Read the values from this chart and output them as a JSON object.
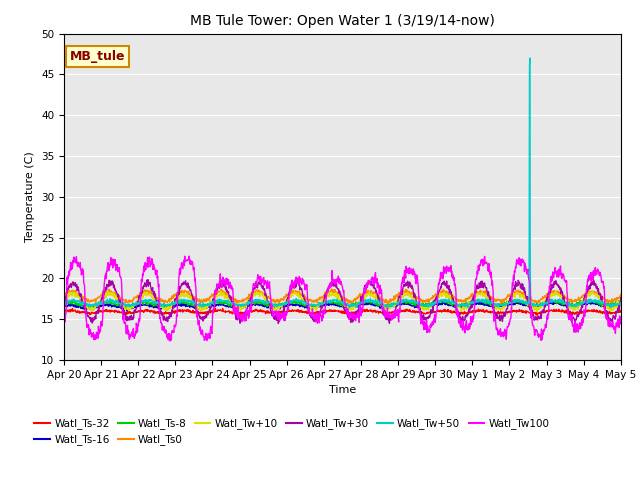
{
  "title": "MB Tule Tower: Open Water 1 (3/19/14-now)",
  "xlabel": "Time",
  "ylabel": "Temperature (C)",
  "ylim": [
    10,
    50
  ],
  "yticks": [
    10,
    15,
    20,
    25,
    30,
    35,
    40,
    45,
    50
  ],
  "bg_color": "#e8e8e8",
  "legend_box_label": "MB_tule",
  "legend_box_facecolor": "#ffffcc",
  "legend_box_edgecolor": "#cc8800",
  "legend_box_textcolor": "#880000",
  "series": [
    {
      "label": "Watl_Ts-32",
      "color": "#ff0000"
    },
    {
      "label": "Watl_Ts-16",
      "color": "#0000cc"
    },
    {
      "label": "Watl_Ts-8",
      "color": "#00cc00"
    },
    {
      "label": "Watl_Ts0",
      "color": "#ff8800"
    },
    {
      "label": "Watl_Tw+10",
      "color": "#dddd00"
    },
    {
      "label": "Watl_Tw+30",
      "color": "#aa00aa"
    },
    {
      "label": "Watl_Tw+50",
      "color": "#00cccc"
    },
    {
      "label": "Watl_Tw100",
      "color": "#ff00ff"
    }
  ],
  "tick_labels": [
    "Apr 20",
    "Apr 21",
    "Apr 22",
    "Apr 23",
    "Apr 24",
    "Apr 25",
    "Apr 26",
    "Apr 27",
    "Apr 28",
    "Apr 29",
    "Apr 30",
    "May 1",
    "May 2",
    "May 3",
    "May 4",
    "May 5"
  ],
  "tick_positions": [
    0,
    1,
    2,
    3,
    4,
    5,
    6,
    7,
    8,
    9,
    10,
    11,
    12,
    13,
    14,
    15
  ]
}
